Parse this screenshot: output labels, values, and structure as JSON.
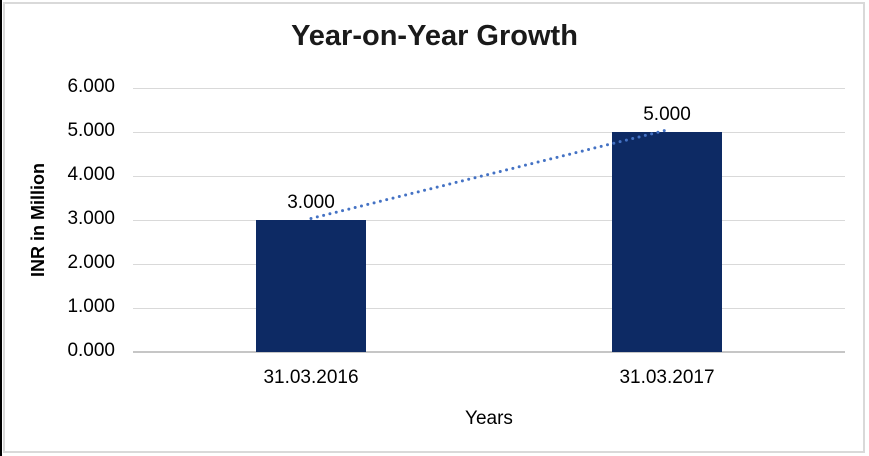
{
  "chart_data": {
    "type": "bar",
    "title": "Year-on-Year Growth",
    "xlabel": "Years",
    "ylabel": "INR in Million",
    "categories": [
      "31.03.2016",
      "31.03.2017"
    ],
    "values": [
      3,
      5
    ],
    "data_labels": [
      "3.000",
      "5.000"
    ],
    "ytick_labels": [
      "0.000",
      "1.000",
      "2.000",
      "3.000",
      "4.000",
      "5.000",
      "6.000"
    ],
    "ylim": [
      0,
      6
    ],
    "grid": true,
    "legend_visible": false,
    "trendline": {
      "type": "linear",
      "style": "dotted",
      "color": "#4472c4",
      "from_value": 3,
      "to_value": 5
    },
    "colors": {
      "bar": "#0d2a64",
      "gridline": "#d9d9d9",
      "axis_line": "#c6c6c6",
      "chart_border": "#d9d9d9",
      "page_edge": "#000000",
      "text": "#000000",
      "title_text": "#1a1a1a"
    }
  }
}
